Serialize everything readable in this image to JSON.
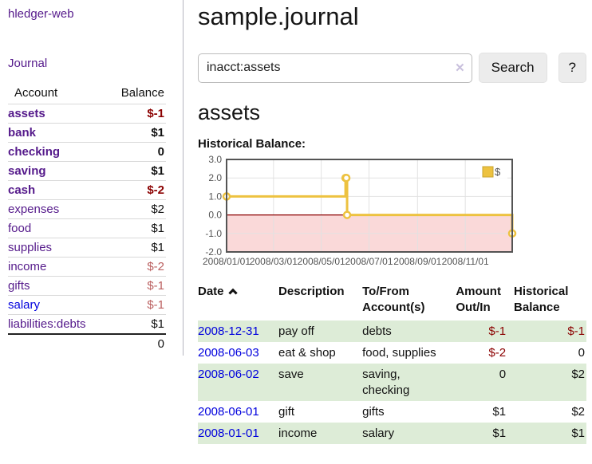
{
  "sidebar": {
    "brand": "hledger-web",
    "nav": {
      "journal": "Journal"
    },
    "accounts_table": {
      "headers": {
        "account": "Account",
        "balance": "Balance"
      },
      "rows": [
        {
          "name": "assets",
          "indent": 1,
          "bold": true,
          "balance": "$-1",
          "neg": "dark"
        },
        {
          "name": "bank",
          "indent": 2,
          "bold": true,
          "balance": "$1"
        },
        {
          "name": "checking",
          "indent": 3,
          "bold": true,
          "balance": "0"
        },
        {
          "name": "saving",
          "indent": 3,
          "bold": true,
          "balance": "$1"
        },
        {
          "name": "cash",
          "indent": 2,
          "bold": true,
          "balance": "$-2",
          "neg": "dark"
        },
        {
          "name": "expenses",
          "indent": 1,
          "bold": false,
          "balance": "$2"
        },
        {
          "name": "food",
          "indent": 2,
          "bold": false,
          "balance": "$1"
        },
        {
          "name": "supplies",
          "indent": 2,
          "bold": false,
          "balance": "$1"
        },
        {
          "name": "income",
          "indent": 1,
          "bold": false,
          "balance": "$-2",
          "neg": "light"
        },
        {
          "name": "gifts",
          "indent": 2,
          "bold": false,
          "balance": "$-1",
          "neg": "light"
        },
        {
          "name": "salary",
          "indent": 2,
          "bold": false,
          "balance": "$-1",
          "neg": "light",
          "link": "blue"
        },
        {
          "name": "liabilities:debts",
          "indent": 1,
          "bold": false,
          "balance": "$1"
        }
      ],
      "total": "0"
    }
  },
  "main": {
    "title": "sample.journal",
    "search": {
      "value": "inacct:assets",
      "clear_icon": "✕",
      "button": "Search",
      "help_button": "?"
    },
    "account_heading": "assets",
    "chart_label": "Historical Balance:"
  },
  "chart_data": {
    "type": "line",
    "title": "Historical Balance",
    "steps": true,
    "series": [
      {
        "name": "$",
        "color": "#edc240",
        "points": [
          {
            "date": "2008-01-01",
            "value": 1
          },
          {
            "date": "2008-06-01",
            "value": 2
          },
          {
            "date": "2008-06-02",
            "value": 2
          },
          {
            "date": "2008-06-03",
            "value": 0
          },
          {
            "date": "2008-12-31",
            "value": -1
          }
        ]
      }
    ],
    "x_range": [
      "2008-01-01",
      "2008-12-31"
    ],
    "x_ticks": [
      "2008/01/01",
      "2008/03/01",
      "2008/05/01",
      "2008/07/01",
      "2008/09/01",
      "2008/11/01"
    ],
    "y_ticks": [
      3.0,
      2.0,
      1.0,
      0.0,
      -1.0,
      -2.0
    ],
    "ylim": [
      -2,
      3
    ],
    "grid": true,
    "negative_region_color": "#fad9d9",
    "zero_line_color": "#8b0000",
    "legend": {
      "label": "$",
      "position": "top-right"
    }
  },
  "register_table": {
    "sort": "ascending",
    "headers": {
      "date": "Date",
      "description": "Description",
      "tofrom": "To/From Account(s)",
      "amount": "Amount Out/In",
      "balance": "Historical Balance"
    },
    "rows": [
      {
        "date": "2008-12-31",
        "description": "pay off",
        "accounts": "debts",
        "amount": "$-1",
        "amount_neg": true,
        "balance": "$-1",
        "balance_neg": true
      },
      {
        "date": "2008-06-03",
        "description": "eat & shop",
        "accounts": "food, supplies",
        "amount": "$-2",
        "amount_neg": true,
        "balance": "0",
        "balance_neg": false
      },
      {
        "date": "2008-06-02",
        "description": "save",
        "accounts": "saving, checking",
        "amount": "0",
        "amount_neg": false,
        "balance": "$2",
        "balance_neg": false
      },
      {
        "date": "2008-06-01",
        "description": "gift",
        "accounts": "gifts",
        "amount": "$1",
        "amount_neg": false,
        "balance": "$2",
        "balance_neg": false
      },
      {
        "date": "2008-01-01",
        "description": "income",
        "accounts": "salary",
        "amount": "$1",
        "amount_neg": false,
        "balance": "$1",
        "balance_neg": false
      }
    ]
  }
}
